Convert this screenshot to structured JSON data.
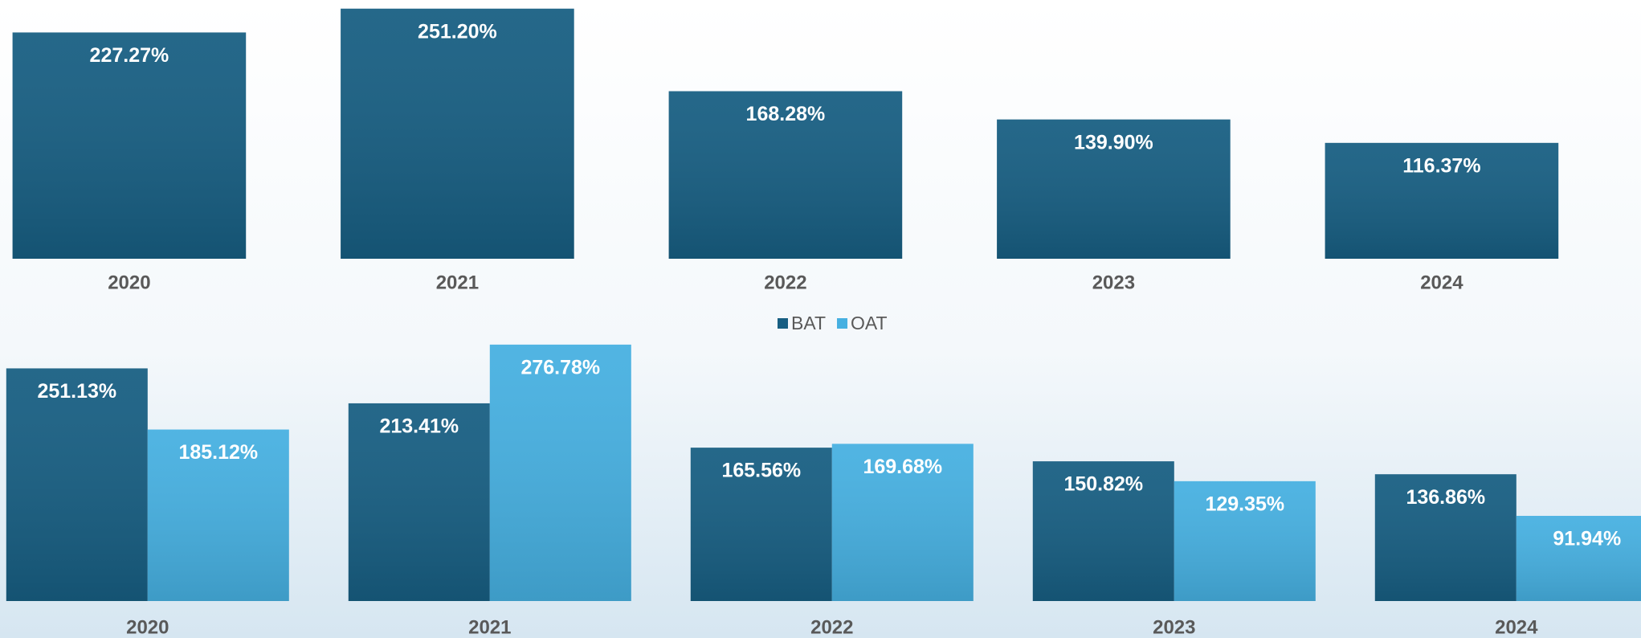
{
  "chart_data": [
    {
      "type": "bar",
      "categories": [
        "2020",
        "2021",
        "2022",
        "2023",
        "2024"
      ],
      "values": [
        227.27,
        251.2,
        168.28,
        139.9,
        116.37
      ],
      "value_labels": [
        "227.27%",
        "251.20%",
        "168.28%",
        "139.90%",
        "116.37%"
      ],
      "color": "#175e82"
    },
    {
      "type": "bar",
      "categories": [
        "2020",
        "2021",
        "2022",
        "2023",
        "2024"
      ],
      "series": [
        {
          "name": "BAT",
          "color": "#175e82",
          "values": [
            251.13,
            213.41,
            165.56,
            150.82,
            136.86
          ],
          "value_labels": [
            "251.13%",
            "213.41%",
            "165.56%",
            "150.82%",
            "136.86%"
          ]
        },
        {
          "name": "OAT",
          "color": "#46b0e1",
          "values": [
            185.12,
            276.78,
            169.68,
            129.35,
            91.94
          ],
          "value_labels": [
            "185.12%",
            "276.78%",
            "169.68%",
            "129.35%",
            "91.94%"
          ]
        }
      ],
      "legend": "top"
    }
  ]
}
